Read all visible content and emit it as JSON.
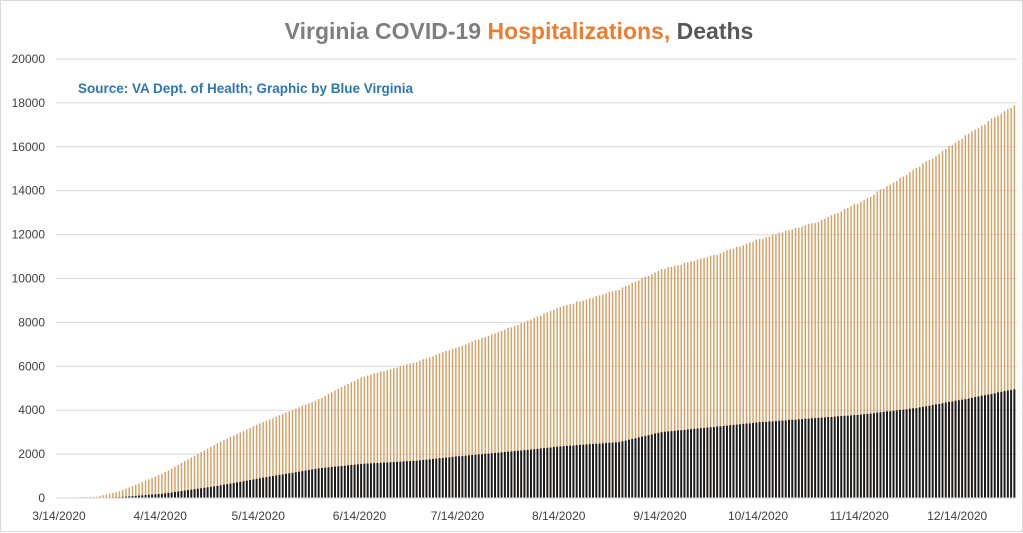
{
  "chart_data": {
    "type": "bar",
    "title_parts": [
      {
        "text": "Virginia COVID-19 ",
        "color": "#7f7f7f"
      },
      {
        "text": "Hospitalizations,",
        "color": "#ed7d31"
      },
      {
        "text": " Deaths",
        "color": "#595959"
      }
    ],
    "source": "Source: VA Dept. of Health; Graphic by Blue Virginia",
    "source_color": "#2e75b6",
    "x_tick_labels": [
      "3/14/2020",
      "4/14/2020",
      "5/14/2020",
      "6/14/2020",
      "7/14/2020",
      "8/14/2020",
      "9/14/2020",
      "10/14/2020",
      "11/14/2020",
      "12/14/2020"
    ],
    "y_tick_labels": [
      "0",
      "2000",
      "4000",
      "6000",
      "8000",
      "10000",
      "12000",
      "14000",
      "16000",
      "18000",
      "20000"
    ],
    "ylim": [
      0,
      20000
    ],
    "grid": true,
    "bar_interval": "daily",
    "series": [
      {
        "color": "#d9a066",
        "points": [
          [
            "3/14/2020",
            10
          ],
          [
            "3/25/2020",
            60
          ],
          [
            "4/1/2020",
            300
          ],
          [
            "4/14/2020",
            1100
          ],
          [
            "5/1/2020",
            2500
          ],
          [
            "5/14/2020",
            3400
          ],
          [
            "6/1/2020",
            4500
          ],
          [
            "6/14/2020",
            5500
          ],
          [
            "7/1/2020",
            6200
          ],
          [
            "7/14/2020",
            6900
          ],
          [
            "8/1/2020",
            7900
          ],
          [
            "8/14/2020",
            8700
          ],
          [
            "9/1/2020",
            9500
          ],
          [
            "9/14/2020",
            10400
          ],
          [
            "10/1/2020",
            11100
          ],
          [
            "10/14/2020",
            11800
          ],
          [
            "11/1/2020",
            12600
          ],
          [
            "11/14/2020",
            13500
          ],
          [
            "12/1/2020",
            15000
          ],
          [
            "12/14/2020",
            16300
          ],
          [
            "12/31/2020",
            17900
          ]
        ]
      },
      {
        "color": "#1a1a1a",
        "points": [
          [
            "3/14/2020",
            0
          ],
          [
            "3/25/2020",
            10
          ],
          [
            "4/1/2020",
            40
          ],
          [
            "4/14/2020",
            190
          ],
          [
            "5/1/2020",
            550
          ],
          [
            "5/14/2020",
            900
          ],
          [
            "6/1/2020",
            1350
          ],
          [
            "6/14/2020",
            1550
          ],
          [
            "7/1/2020",
            1700
          ],
          [
            "7/14/2020",
            1900
          ],
          [
            "8/1/2020",
            2150
          ],
          [
            "8/14/2020",
            2350
          ],
          [
            "9/1/2020",
            2550
          ],
          [
            "9/14/2020",
            3000
          ],
          [
            "10/1/2020",
            3250
          ],
          [
            "10/14/2020",
            3450
          ],
          [
            "11/1/2020",
            3650
          ],
          [
            "11/14/2020",
            3800
          ],
          [
            "12/1/2020",
            4100
          ],
          [
            "12/14/2020",
            4450
          ],
          [
            "12/31/2020",
            4950
          ]
        ]
      }
    ]
  }
}
